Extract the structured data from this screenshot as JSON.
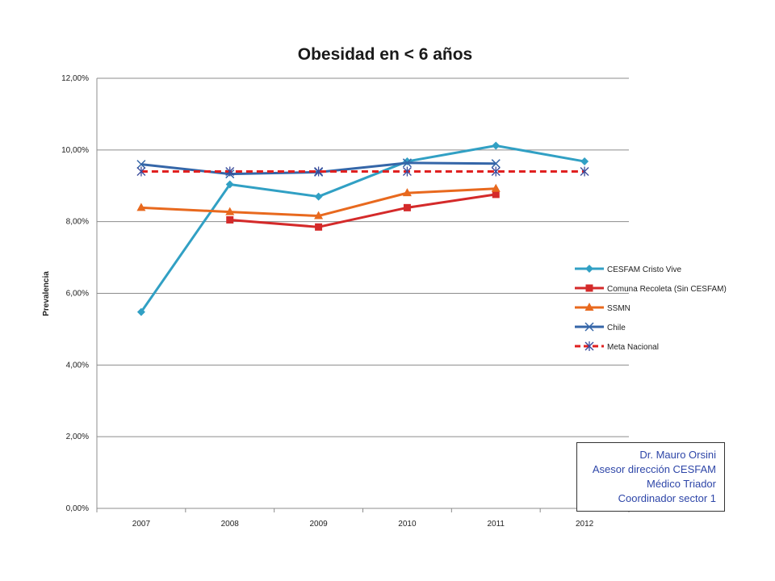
{
  "chart_data": {
    "type": "line",
    "title": "Obesidad en < 6 años",
    "xlabel": "",
    "ylabel": "Prevalencia",
    "categories": [
      "2007",
      "2008",
      "2009",
      "2010",
      "2011",
      "2012"
    ],
    "ylim": [
      0,
      12
    ],
    "yticks": [
      0,
      2,
      4,
      6,
      8,
      10,
      12
    ],
    "ytick_labels": [
      "0,00%",
      "2,00%",
      "4,00%",
      "6,00%",
      "8,00%",
      "10,00%",
      "12,00%"
    ],
    "y_unit": "%",
    "grid": "horizontal",
    "legend_position": "right",
    "series": [
      {
        "name": "CESFAM Cristo Vive",
        "color": "#31a0c4",
        "marker": "diamond",
        "dashed": false,
        "values": [
          5.48,
          9.04,
          8.7,
          9.68,
          10.12,
          9.68
        ]
      },
      {
        "name": "Comuna Recoleta (Sin CESFAM)",
        "color": "#d42a2a",
        "marker": "square",
        "dashed": false,
        "values": [
          null,
          8.05,
          7.85,
          8.39,
          8.76,
          null
        ]
      },
      {
        "name": "SSMN",
        "color": "#e8691e",
        "marker": "triangle",
        "dashed": false,
        "values": [
          8.39,
          8.27,
          8.16,
          8.8,
          8.92,
          null
        ]
      },
      {
        "name": "Chile",
        "color": "#3566a8",
        "marker": "x",
        "dashed": false,
        "values": [
          9.6,
          9.33,
          9.38,
          9.64,
          9.62,
          null
        ]
      },
      {
        "name": "Meta Nacional",
        "color": "#e02020",
        "marker": "star",
        "dashed": true,
        "values": [
          9.4,
          9.4,
          9.4,
          9.4,
          9.4,
          9.4
        ]
      }
    ]
  },
  "note": {
    "lines": [
      "Dr. Mauro Orsini",
      "Asesor dirección CESFAM",
      "Médico Triador ",
      "Coordinador sector 1"
    ]
  }
}
